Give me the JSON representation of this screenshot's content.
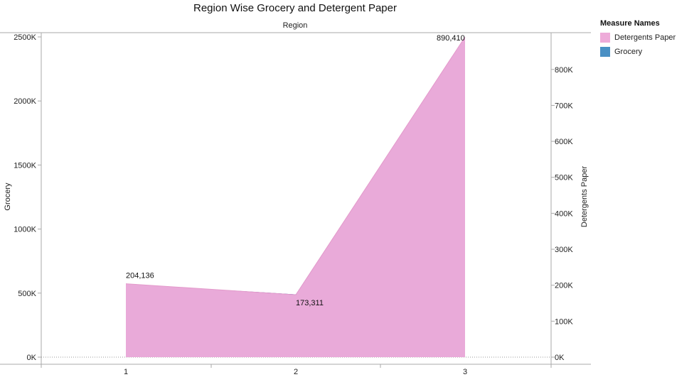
{
  "chart_data": {
    "type": "area",
    "title": "Region Wise Grocery and Detergent Paper",
    "header_label": "Region",
    "categories": [
      "1",
      "2",
      "3"
    ],
    "left_axis": {
      "label": "Grocery",
      "ylim": [
        0,
        2500000
      ],
      "ticks": [
        {
          "value": 0,
          "label": "0K"
        },
        {
          "value": 500000,
          "label": "500K"
        },
        {
          "value": 1000000,
          "label": "1000K"
        },
        {
          "value": 1500000,
          "label": "1500K"
        },
        {
          "value": 2000000,
          "label": "2000K"
        },
        {
          "value": 2500000,
          "label": "2500K"
        }
      ]
    },
    "right_axis": {
      "label": "Detergents Paper",
      "ylim": [
        0,
        890410
      ],
      "ticks": [
        {
          "value": 0,
          "label": "0K"
        },
        {
          "value": 100000,
          "label": "100K"
        },
        {
          "value": 200000,
          "label": "200K"
        },
        {
          "value": 300000,
          "label": "300K"
        },
        {
          "value": 400000,
          "label": "400K"
        },
        {
          "value": 500000,
          "label": "500K"
        },
        {
          "value": 600000,
          "label": "600K"
        },
        {
          "value": 700000,
          "label": "700K"
        },
        {
          "value": 800000,
          "label": "800K"
        }
      ]
    },
    "series": [
      {
        "name": "Detergents Paper",
        "axis": "right",
        "color": "#eeabd9",
        "values": [
          204136,
          173311,
          890410
        ],
        "labels": [
          "204,136",
          "173,311",
          "890,410"
        ]
      },
      {
        "name": "Grocery",
        "axis": "left",
        "color": "#1f77b4",
        "values": [
          570000,
          490000,
          2495000
        ]
      }
    ],
    "overlap_color": "#9b72c2",
    "legend": {
      "title": "Measure Names",
      "position": "right",
      "items": [
        {
          "name": "Detergents Paper",
          "color": "#eeabd9"
        },
        {
          "name": "Grocery",
          "color": "#4a90c4"
        }
      ]
    },
    "grid": false
  }
}
